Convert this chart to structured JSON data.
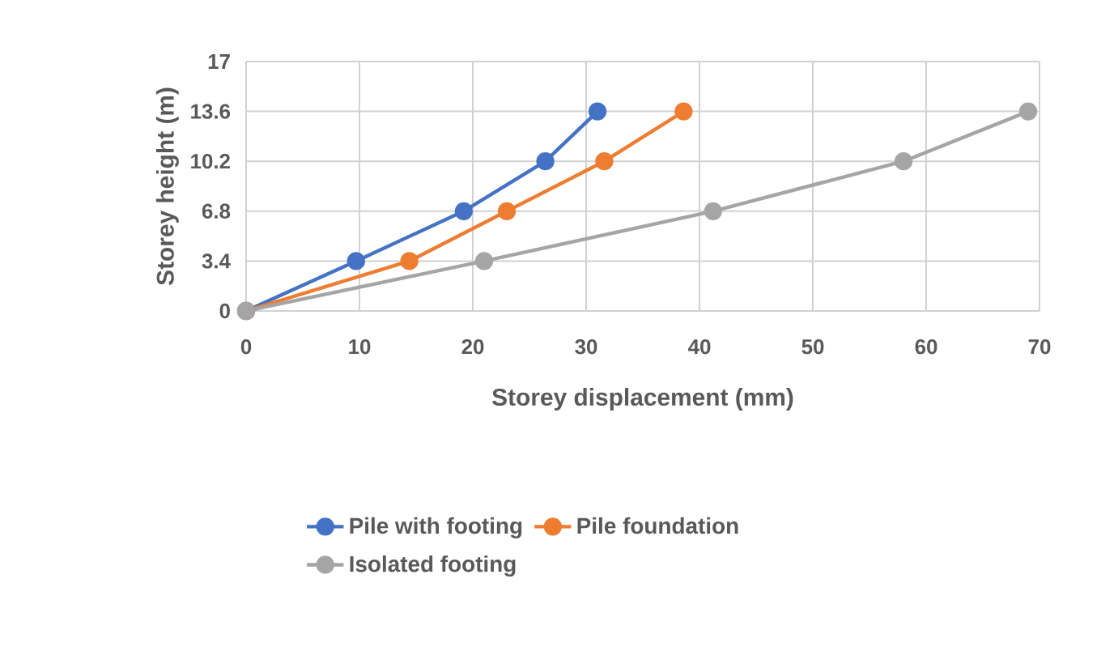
{
  "chart_data": {
    "type": "line",
    "xlabel": "Storey displacement (mm)",
    "ylabel": "Storey height (m)",
    "xlim": [
      0,
      70
    ],
    "xticks": [
      0,
      10,
      20,
      30,
      40,
      50,
      60,
      70
    ],
    "ylim": [
      0,
      17
    ],
    "yticks": [
      0,
      3.4,
      6.8,
      10.2,
      13.6,
      17
    ],
    "grid": true,
    "legend": "bottom",
    "marker": "circle",
    "line_style": "solid",
    "series": [
      {
        "name": "Pile with footing",
        "color": "#4472c4",
        "x": [
          0,
          9.7,
          19.2,
          26.4,
          31
        ],
        "values": [
          0,
          3.4,
          6.8,
          10.2,
          13.6
        ]
      },
      {
        "name": "Pile foundation",
        "color": "#ed7d31",
        "x": [
          0,
          14.4,
          23,
          31.6,
          38.6
        ],
        "values": [
          0,
          3.4,
          6.8,
          10.2,
          13.6
        ]
      },
      {
        "name": "Isolated footing",
        "color": "#a5a5a5",
        "x": [
          0,
          21,
          41.2,
          58,
          69
        ],
        "values": [
          0,
          3.4,
          6.8,
          10.2,
          13.6
        ]
      }
    ]
  }
}
